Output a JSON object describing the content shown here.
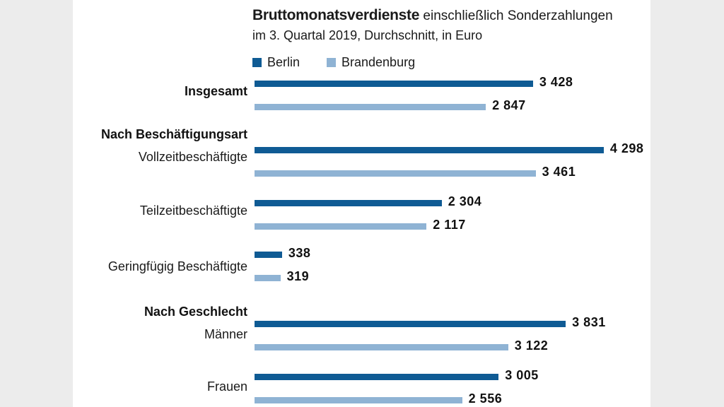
{
  "title_bold": "Bruttomonatsverdienste",
  "title_rest": "einschließlich Sonderzahlungen",
  "subtitle": "im 3. Quartal 2019, Durchschnitt, in Euro",
  "colors": {
    "berlin": "#0f5b94",
    "brandenburg": "#8fb3d4"
  },
  "chart_data": {
    "type": "bar",
    "orientation": "horizontal",
    "legend_position": "top",
    "grid": false,
    "groups": [
      {
        "label": "Insgesamt",
        "categories": [
          ""
        ]
      },
      {
        "label": "Nach Beschäftigungsart",
        "categories": [
          "Vollzeitbeschäftigte",
          "Teilzeitbeschäftigte",
          "Geringfügig Beschäftigte"
        ]
      },
      {
        "label": "Nach Geschlecht",
        "categories": [
          "Männer",
          "Frauen"
        ]
      }
    ],
    "series": [
      {
        "name": "Berlin",
        "values": [
          3428,
          4298,
          2304,
          338,
          3831,
          3005
        ],
        "labels": [
          "3 428",
          "4 298",
          "2 304",
          "338",
          "3 831",
          "3 005"
        ]
      },
      {
        "name": "Brandenburg",
        "values": [
          2847,
          3461,
          2117,
          319,
          3122,
          2556
        ],
        "labels": [
          "2 847",
          "3 461",
          "2 117",
          "319",
          "3 122",
          "2 556"
        ]
      }
    ]
  }
}
